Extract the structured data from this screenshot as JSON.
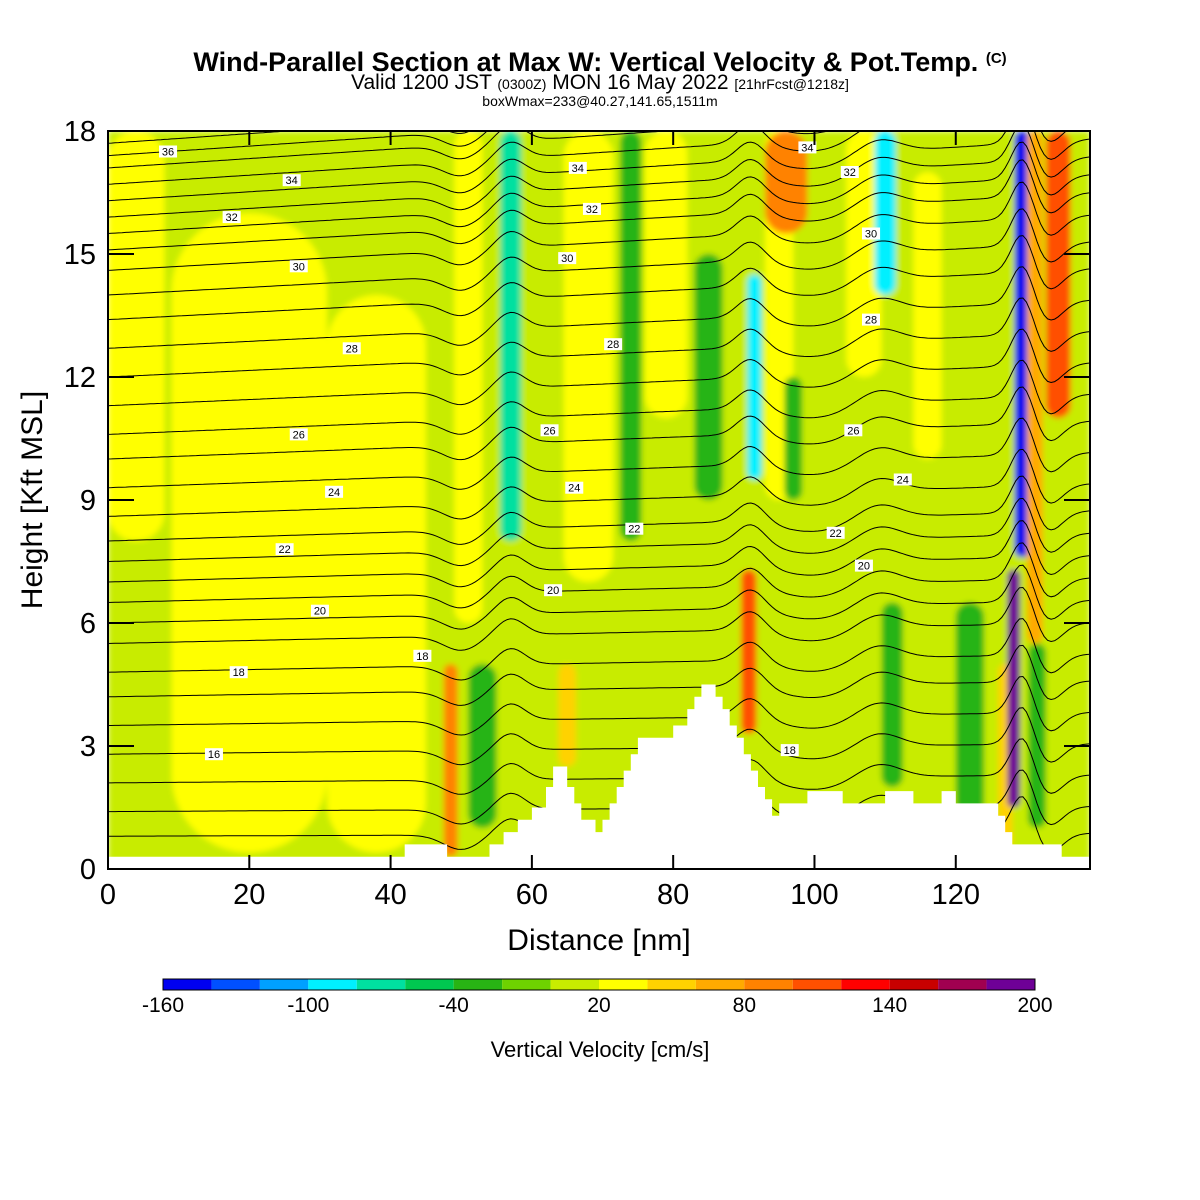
{
  "header": {
    "title": "Wind-Parallel Section at Max W: Vertical Velocity & Pot.Temp.",
    "title_mark": "(C)",
    "valid_prefix": "Valid 1200 JST",
    "valid_utc": "(0300Z)",
    "valid_date": "MON 16 May 2022",
    "forecast": "[21hrFcst@1218z]",
    "boxwmax": "boxWmax=233@40.27,141.65,1511m"
  },
  "chart_data": {
    "type": "heatmap",
    "title": "Wind-Parallel Section at Max W: Vertical Velocity & Pot.Temp.",
    "xlabel": "Distance [nm]",
    "ylabel": "Height [Kft MSL]",
    "xlim": [
      0,
      139
    ],
    "ylim": [
      0,
      18
    ],
    "xticks": [
      0,
      20,
      40,
      60,
      80,
      100,
      120
    ],
    "yticks": [
      0,
      3,
      6,
      9,
      12,
      15,
      18
    ],
    "colorbar": {
      "label": "Vertical Velocity [cm/s]",
      "min": -160,
      "max": 200,
      "tick_values": [
        -160,
        -100,
        -40,
        20,
        80,
        140,
        200
      ],
      "colors": [
        "#0000f0",
        "#0050ff",
        "#00a0ff",
        "#00f0ff",
        "#00e0a0",
        "#00c850",
        "#28b414",
        "#6ed200",
        "#c8ec00",
        "#ffff00",
        "#ffd200",
        "#ffaa00",
        "#ff8200",
        "#ff5000",
        "#ff0000",
        "#c80000",
        "#a00050",
        "#6e0096"
      ]
    },
    "background_w": 5,
    "features": [
      {
        "name": "weak-updraft-band",
        "x_center": 4,
        "width": 8,
        "y_bottom": 8,
        "y_top": 18,
        "w": 20
      },
      {
        "name": "weak-updraft-band",
        "x_center": 20,
        "width": 22,
        "y_bottom": 0.4,
        "y_top": 16,
        "w": 20
      },
      {
        "name": "weak-updraft-band",
        "x_center": 38,
        "width": 14,
        "y_bottom": 0.4,
        "y_top": 14,
        "w": 20
      },
      {
        "name": "updraft",
        "x_center": 48.5,
        "width": 2,
        "y_bottom": 0.3,
        "y_top": 5,
        "w": 80
      },
      {
        "name": "updraft",
        "x_center": 51,
        "width": 4,
        "y_bottom": 6,
        "y_top": 18,
        "w": 20
      },
      {
        "name": "downdraft",
        "x_center": 57,
        "width": 3,
        "y_bottom": 8,
        "y_top": 18,
        "w": -70
      },
      {
        "name": "downdraft",
        "x_center": 53,
        "width": 4,
        "y_bottom": 1,
        "y_top": 5,
        "w": -25
      },
      {
        "name": "updraft",
        "x_center": 65,
        "width": 2.5,
        "y_bottom": 2.5,
        "y_top": 5,
        "w": 40
      },
      {
        "name": "updraft",
        "x_center": 68,
        "width": 7,
        "y_bottom": 7,
        "y_top": 18,
        "w": 20
      },
      {
        "name": "downdraft",
        "x_center": 74,
        "width": 3,
        "y_bottom": 8,
        "y_top": 18,
        "w": -25
      },
      {
        "name": "updraft",
        "x_center": 79,
        "width": 6,
        "y_bottom": 11,
        "y_top": 18,
        "w": 30
      },
      {
        "name": "downdraft",
        "x_center": 85,
        "width": 4,
        "y_bottom": 9,
        "y_top": 15,
        "w": -25
      },
      {
        "name": "updraft",
        "x_center": 90.7,
        "width": 2.2,
        "y_bottom": 3.3,
        "y_top": 7.3,
        "w": 110
      },
      {
        "name": "downdraft",
        "x_center": 91.5,
        "width": 2,
        "y_bottom": 9.5,
        "y_top": 14.5,
        "w": -90
      },
      {
        "name": "updraft",
        "x_center": 95,
        "width": 4,
        "y_bottom": 9,
        "y_top": 18,
        "w": 20
      },
      {
        "name": "updraft",
        "x_center": 96,
        "width": 6,
        "y_bottom": 15.5,
        "y_top": 18,
        "w": 90
      },
      {
        "name": "downdraft",
        "x_center": 97,
        "width": 2.5,
        "y_bottom": 9,
        "y_top": 12,
        "w": -40
      },
      {
        "name": "updraft",
        "x_center": 107,
        "width": 5,
        "y_bottom": 12,
        "y_top": 18,
        "w": 30
      },
      {
        "name": "downdraft",
        "x_center": 110,
        "width": 3,
        "y_bottom": 14,
        "y_top": 18,
        "w": -85
      },
      {
        "name": "updraft",
        "x_center": 116,
        "width": 4,
        "y_bottom": 10,
        "y_top": 17,
        "w": 30
      },
      {
        "name": "downdraft",
        "x_center": 111,
        "width": 3,
        "y_bottom": 2,
        "y_top": 6.5,
        "w": -40
      },
      {
        "name": "downdraft",
        "x_center": 122,
        "width": 4,
        "y_bottom": 1,
        "y_top": 6.5,
        "w": -25
      },
      {
        "name": "updraft",
        "x_center": 127,
        "width": 2,
        "y_bottom": 0.5,
        "y_top": 5,
        "w": 40
      },
      {
        "name": "updraft-core",
        "x_center": 128.2,
        "width": 1.8,
        "y_bottom": 1.5,
        "y_top": 7.3,
        "w": 190
      },
      {
        "name": "downdraft-core",
        "x_center": 129.4,
        "width": 2.2,
        "y_bottom": 7.6,
        "y_top": 18,
        "w": -155
      },
      {
        "name": "updraft",
        "x_center": 131.2,
        "width": 2.2,
        "y_bottom": 5.5,
        "y_top": 18,
        "w": 60
      },
      {
        "name": "updraft",
        "x_center": 134.5,
        "width": 3.5,
        "y_bottom": 11,
        "y_top": 18,
        "w": 100
      },
      {
        "name": "downdraft",
        "x_center": 131.5,
        "width": 2.5,
        "y_bottom": 1,
        "y_top": 5.5,
        "w": -40
      }
    ],
    "terrain_kft": [
      [
        0,
        0.3
      ],
      [
        42,
        0.3
      ],
      [
        42,
        0.6
      ],
      [
        48,
        0.6
      ],
      [
        48,
        0.3
      ],
      [
        54,
        0.3
      ],
      [
        54,
        0.6
      ],
      [
        56,
        0.6
      ],
      [
        56,
        0.9
      ],
      [
        58,
        0.9
      ],
      [
        58,
        1.2
      ],
      [
        60,
        1.2
      ],
      [
        60,
        1.5
      ],
      [
        62,
        1.5
      ],
      [
        62,
        2.0
      ],
      [
        63,
        2.0
      ],
      [
        63,
        2.5
      ],
      [
        65,
        2.5
      ],
      [
        65,
        2.0
      ],
      [
        66,
        2.0
      ],
      [
        66,
        1.6
      ],
      [
        67,
        1.6
      ],
      [
        67,
        1.2
      ],
      [
        69,
        1.2
      ],
      [
        69,
        0.9
      ],
      [
        70,
        0.9
      ],
      [
        70,
        1.2
      ],
      [
        71,
        1.2
      ],
      [
        71,
        1.6
      ],
      [
        72,
        1.6
      ],
      [
        72,
        2.0
      ],
      [
        73,
        2.0
      ],
      [
        73,
        2.4
      ],
      [
        74,
        2.4
      ],
      [
        74,
        2.8
      ],
      [
        75,
        2.8
      ],
      [
        75,
        3.2
      ],
      [
        80,
        3.2
      ],
      [
        80,
        3.5
      ],
      [
        82,
        3.5
      ],
      [
        82,
        3.9
      ],
      [
        83,
        3.9
      ],
      [
        83,
        4.2
      ],
      [
        84,
        4.2
      ],
      [
        84,
        4.5
      ],
      [
        86,
        4.5
      ],
      [
        86,
        4.2
      ],
      [
        87,
        4.2
      ],
      [
        87,
        3.9
      ],
      [
        88,
        3.9
      ],
      [
        88,
        3.5
      ],
      [
        89,
        3.5
      ],
      [
        89,
        3.2
      ],
      [
        90,
        3.2
      ],
      [
        90,
        2.8
      ],
      [
        91,
        2.8
      ],
      [
        91,
        2.4
      ],
      [
        92,
        2.4
      ],
      [
        92,
        2.0
      ],
      [
        93,
        2.0
      ],
      [
        93,
        1.7
      ],
      [
        94,
        1.7
      ],
      [
        94,
        1.3
      ],
      [
        95,
        1.3
      ],
      [
        95,
        1.6
      ],
      [
        99,
        1.6
      ],
      [
        99,
        1.9
      ],
      [
        104,
        1.9
      ],
      [
        104,
        1.6
      ],
      [
        110,
        1.6
      ],
      [
        110,
        1.9
      ],
      [
        114,
        1.9
      ],
      [
        114,
        1.6
      ],
      [
        118,
        1.6
      ],
      [
        118,
        1.9
      ],
      [
        120,
        1.9
      ],
      [
        120,
        1.6
      ],
      [
        126,
        1.6
      ],
      [
        126,
        1.3
      ],
      [
        127,
        1.3
      ],
      [
        127,
        0.9
      ],
      [
        128,
        0.9
      ],
      [
        128,
        0.6
      ],
      [
        135,
        0.6
      ],
      [
        135,
        0.3
      ],
      [
        139,
        0.3
      ]
    ],
    "isentropes": [
      {
        "at_x0": 0.8,
        "label": ""
      },
      {
        "at_x0": 1.4,
        "label": ""
      },
      {
        "at_x0": 2.1,
        "label": ""
      },
      {
        "at_x0": 2.8,
        "label": "16"
      },
      {
        "at_x0": 3.5,
        "label": ""
      },
      {
        "at_x0": 4.2,
        "label": ""
      },
      {
        "at_x0": 4.8,
        "label": "18"
      },
      {
        "at_x0": 5.5,
        "label": ""
      },
      {
        "at_x0": 6.0,
        "label": "20"
      },
      {
        "at_x0": 6.5,
        "label": ""
      },
      {
        "at_x0": 7.0,
        "label": ""
      },
      {
        "at_x0": 7.5,
        "label": "22"
      },
      {
        "at_x0": 8.0,
        "label": ""
      },
      {
        "at_x0": 8.6,
        "label": "24"
      },
      {
        "at_x0": 9.3,
        "label": ""
      },
      {
        "at_x0": 10.0,
        "label": ""
      },
      {
        "at_x0": 10.6,
        "label": "26"
      },
      {
        "at_x0": 11.3,
        "label": ""
      },
      {
        "at_x0": 12.0,
        "label": ""
      },
      {
        "at_x0": 12.7,
        "label": "28"
      },
      {
        "at_x0": 13.4,
        "label": ""
      },
      {
        "at_x0": 14.0,
        "label": ""
      },
      {
        "at_x0": 14.6,
        "label": "30"
      },
      {
        "at_x0": 15.1,
        "label": ""
      },
      {
        "at_x0": 15.5,
        "label": "32"
      },
      {
        "at_x0": 15.9,
        "label": ""
      },
      {
        "at_x0": 16.3,
        "label": ""
      },
      {
        "at_x0": 16.7,
        "label": "34"
      },
      {
        "at_x0": 17.1,
        "label": ""
      },
      {
        "at_x0": 17.4,
        "label": "36"
      },
      {
        "at_x0": 17.7,
        "label": ""
      }
    ],
    "contour_labels": [
      {
        "text": "36",
        "x": 8.5,
        "y": 17.5
      },
      {
        "text": "34",
        "x": 26,
        "y": 16.8
      },
      {
        "text": "32",
        "x": 17.5,
        "y": 15.9
      },
      {
        "text": "30",
        "x": 27,
        "y": 14.7
      },
      {
        "text": "28",
        "x": 34.5,
        "y": 12.7
      },
      {
        "text": "26",
        "x": 27,
        "y": 10.6
      },
      {
        "text": "24",
        "x": 32,
        "y": 9.2
      },
      {
        "text": "22",
        "x": 25,
        "y": 7.8
      },
      {
        "text": "20",
        "x": 30,
        "y": 6.3
      },
      {
        "text": "18",
        "x": 18.5,
        "y": 4.8
      },
      {
        "text": "16",
        "x": 15,
        "y": 2.8
      },
      {
        "text": "18",
        "x": 44.5,
        "y": 5.2
      },
      {
        "text": "20",
        "x": 63,
        "y": 6.8
      },
      {
        "text": "34",
        "x": 66.5,
        "y": 17.1
      },
      {
        "text": "32",
        "x": 68.5,
        "y": 16.1
      },
      {
        "text": "30",
        "x": 65,
        "y": 14.9
      },
      {
        "text": "28",
        "x": 71.5,
        "y": 12.8
      },
      {
        "text": "26",
        "x": 62.5,
        "y": 10.7
      },
      {
        "text": "24",
        "x": 66,
        "y": 9.3
      },
      {
        "text": "22",
        "x": 74.5,
        "y": 8.3
      },
      {
        "text": "18",
        "x": 96.5,
        "y": 2.9
      },
      {
        "text": "34",
        "x": 99,
        "y": 17.6
      },
      {
        "text": "32",
        "x": 105,
        "y": 17.0
      },
      {
        "text": "30",
        "x": 108,
        "y": 15.5
      },
      {
        "text": "28",
        "x": 108,
        "y": 13.4
      },
      {
        "text": "26",
        "x": 105.5,
        "y": 10.7
      },
      {
        "text": "24",
        "x": 112.5,
        "y": 9.5
      },
      {
        "text": "22",
        "x": 103,
        "y": 8.2
      },
      {
        "text": "20",
        "x": 107,
        "y": 7.4
      }
    ]
  }
}
